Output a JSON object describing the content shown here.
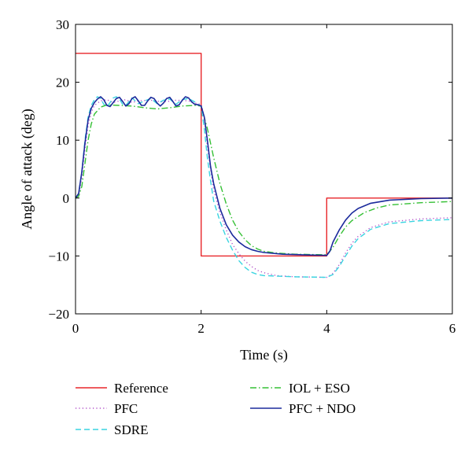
{
  "chart_data": {
    "type": "line",
    "xlabel": "Time (s)",
    "ylabel": "Angle of attack (deg)",
    "xlim": [
      0,
      6
    ],
    "ylim": [
      -20,
      30
    ],
    "xticks": [
      0,
      2,
      4,
      6
    ],
    "yticks": [
      -20,
      -10,
      0,
      10,
      20,
      30
    ],
    "xtick_labels": [
      "0",
      "2",
      "4",
      "6"
    ],
    "ytick_labels": [
      "−20",
      "−10",
      "0",
      "10",
      "20",
      "30"
    ],
    "grid": false,
    "legend_position": "below-plot",
    "series": [
      {
        "name": "Reference",
        "color": "#e8262a",
        "style": "solid",
        "points": [
          [
            0,
            25
          ],
          [
            2,
            25
          ],
          [
            2,
            -10
          ],
          [
            4,
            -10
          ],
          [
            4,
            0
          ],
          [
            6,
            0
          ]
        ]
      },
      {
        "name": "PFC",
        "color": "#b04ec8",
        "style": "dotted",
        "points": [
          [
            0,
            0
          ],
          [
            0.05,
            0.6
          ],
          [
            0.1,
            3.5
          ],
          [
            0.15,
            8.5
          ],
          [
            0.2,
            12.5
          ],
          [
            0.25,
            14.8
          ],
          [
            0.3,
            16
          ],
          [
            0.4,
            16.8
          ],
          [
            0.5,
            17
          ],
          [
            0.6,
            16.5
          ],
          [
            0.7,
            16.8
          ],
          [
            0.8,
            17
          ],
          [
            0.9,
            16.5
          ],
          [
            1.0,
            16.8
          ],
          [
            1.2,
            16.9
          ],
          [
            1.4,
            16.6
          ],
          [
            1.6,
            16.9
          ],
          [
            1.8,
            16.8
          ],
          [
            1.9,
            16.4
          ],
          [
            2.0,
            16.2
          ],
          [
            2.05,
            14
          ],
          [
            2.1,
            9
          ],
          [
            2.15,
            5
          ],
          [
            2.2,
            1.5
          ],
          [
            2.3,
            -2.5
          ],
          [
            2.4,
            -5.5
          ],
          [
            2.5,
            -8
          ],
          [
            2.6,
            -9.6
          ],
          [
            2.7,
            -10.9
          ],
          [
            2.8,
            -11.8
          ],
          [
            2.9,
            -12.5
          ],
          [
            3.0,
            -12.9
          ],
          [
            3.2,
            -13.4
          ],
          [
            3.5,
            -13.6
          ],
          [
            4.0,
            -13.7
          ],
          [
            4.1,
            -13
          ],
          [
            4.2,
            -11.5
          ],
          [
            4.3,
            -9.5
          ],
          [
            4.4,
            -7.8
          ],
          [
            4.5,
            -6.6
          ],
          [
            4.7,
            -5.1
          ],
          [
            5.0,
            -4.1
          ],
          [
            5.5,
            -3.6
          ],
          [
            6.0,
            -3.4
          ]
        ]
      },
      {
        "name": "SDRE",
        "color": "#3ad4e0",
        "style": "dashed",
        "points": [
          [
            0,
            0
          ],
          [
            0.05,
            0.8
          ],
          [
            0.1,
            4.5
          ],
          [
            0.15,
            10
          ],
          [
            0.2,
            14
          ],
          [
            0.25,
            16
          ],
          [
            0.3,
            17
          ],
          [
            0.35,
            17.5
          ],
          [
            0.4,
            17.2
          ],
          [
            0.45,
            16.2
          ],
          [
            0.5,
            15.8
          ],
          [
            0.55,
            16.5
          ],
          [
            0.6,
            17.3
          ],
          [
            0.65,
            17.5
          ],
          [
            0.7,
            17.1
          ],
          [
            0.75,
            16.2
          ],
          [
            0.8,
            16
          ],
          [
            0.9,
            17.3
          ],
          [
            1.0,
            16.3
          ],
          [
            1.1,
            16.8
          ],
          [
            1.2,
            17.2
          ],
          [
            1.3,
            16.3
          ],
          [
            1.4,
            16.9
          ],
          [
            1.5,
            17.1
          ],
          [
            1.6,
            16.2
          ],
          [
            1.7,
            17
          ],
          [
            1.8,
            17.2
          ],
          [
            1.9,
            16.6
          ],
          [
            1.95,
            16.2
          ],
          [
            2.0,
            15.8
          ],
          [
            2.05,
            12
          ],
          [
            2.1,
            7
          ],
          [
            2.15,
            3
          ],
          [
            2.2,
            -0.5
          ],
          [
            2.3,
            -4
          ],
          [
            2.4,
            -6.8
          ],
          [
            2.5,
            -9
          ],
          [
            2.6,
            -10.8
          ],
          [
            2.7,
            -12
          ],
          [
            2.8,
            -12.8
          ],
          [
            2.9,
            -13.2
          ],
          [
            3.0,
            -13.4
          ],
          [
            3.5,
            -13.6
          ],
          [
            4.0,
            -13.7
          ],
          [
            4.1,
            -13.2
          ],
          [
            4.2,
            -11.8
          ],
          [
            4.3,
            -10
          ],
          [
            4.4,
            -8.3
          ],
          [
            4.5,
            -7
          ],
          [
            4.7,
            -5.4
          ],
          [
            5.0,
            -4.4
          ],
          [
            5.5,
            -3.9
          ],
          [
            6.0,
            -3.7
          ]
        ]
      },
      {
        "name": "IOL + ESO",
        "color": "#35c035",
        "style": "dashdot",
        "points": [
          [
            0,
            0
          ],
          [
            0.05,
            0.3
          ],
          [
            0.1,
            2
          ],
          [
            0.15,
            6
          ],
          [
            0.2,
            10
          ],
          [
            0.25,
            12.8
          ],
          [
            0.3,
            14.5
          ],
          [
            0.4,
            15.7
          ],
          [
            0.5,
            16.1
          ],
          [
            0.7,
            16
          ],
          [
            0.9,
            15.9
          ],
          [
            1.1,
            15.6
          ],
          [
            1.3,
            15.4
          ],
          [
            1.5,
            15.6
          ],
          [
            1.7,
            15.9
          ],
          [
            1.9,
            16
          ],
          [
            2.0,
            15.9
          ],
          [
            2.1,
            12
          ],
          [
            2.2,
            7
          ],
          [
            2.3,
            2.5
          ],
          [
            2.4,
            -1
          ],
          [
            2.5,
            -3.8
          ],
          [
            2.6,
            -5.8
          ],
          [
            2.7,
            -7.2
          ],
          [
            2.8,
            -8.2
          ],
          [
            2.9,
            -8.8
          ],
          [
            3.0,
            -9.2
          ],
          [
            3.2,
            -9.5
          ],
          [
            3.5,
            -9.7
          ],
          [
            4.0,
            -9.8
          ],
          [
            4.1,
            -8.5
          ],
          [
            4.2,
            -6.6
          ],
          [
            4.3,
            -5
          ],
          [
            4.4,
            -3.9
          ],
          [
            4.6,
            -2.5
          ],
          [
            4.8,
            -1.7
          ],
          [
            5.0,
            -1.2
          ],
          [
            5.5,
            -0.8
          ],
          [
            6.0,
            -0.6
          ]
        ]
      },
      {
        "name": "PFC + NDO",
        "color": "#1b2a9c",
        "style": "solid",
        "points": [
          [
            0,
            0
          ],
          [
            0.05,
            0.8
          ],
          [
            0.1,
            4.5
          ],
          [
            0.15,
            9.5
          ],
          [
            0.2,
            13.5
          ],
          [
            0.25,
            15.5
          ],
          [
            0.3,
            16.5
          ],
          [
            0.35,
            17.1
          ],
          [
            0.4,
            17.5
          ],
          [
            0.45,
            17
          ],
          [
            0.5,
            16
          ],
          [
            0.55,
            15.8
          ],
          [
            0.6,
            16.5
          ],
          [
            0.65,
            17.2
          ],
          [
            0.7,
            17.4
          ],
          [
            0.75,
            16.7
          ],
          [
            0.8,
            15.9
          ],
          [
            0.85,
            16.3
          ],
          [
            0.9,
            17.2
          ],
          [
            0.95,
            17.5
          ],
          [
            1.0,
            16.8
          ],
          [
            1.05,
            16
          ],
          [
            1.1,
            16
          ],
          [
            1.15,
            16.8
          ],
          [
            1.2,
            17.4
          ],
          [
            1.25,
            17.2
          ],
          [
            1.3,
            16.4
          ],
          [
            1.35,
            15.9
          ],
          [
            1.4,
            16.4
          ],
          [
            1.45,
            17.2
          ],
          [
            1.5,
            17.4
          ],
          [
            1.55,
            16.7
          ],
          [
            1.6,
            15.9
          ],
          [
            1.65,
            16.1
          ],
          [
            1.7,
            16.9
          ],
          [
            1.75,
            17.5
          ],
          [
            1.8,
            17.3
          ],
          [
            1.85,
            16.6
          ],
          [
            1.9,
            16.2
          ],
          [
            1.95,
            16.1
          ],
          [
            2.0,
            15.9
          ],
          [
            2.05,
            14
          ],
          [
            2.1,
            10
          ],
          [
            2.15,
            5.5
          ],
          [
            2.2,
            2.5
          ],
          [
            2.3,
            -1.8
          ],
          [
            2.4,
            -4.6
          ],
          [
            2.5,
            -6.4
          ],
          [
            2.6,
            -7.6
          ],
          [
            2.7,
            -8.4
          ],
          [
            2.8,
            -8.9
          ],
          [
            2.9,
            -9.2
          ],
          [
            3.0,
            -9.4
          ],
          [
            3.3,
            -9.7
          ],
          [
            3.6,
            -9.8
          ],
          [
            4.0,
            -9.9
          ],
          [
            4.05,
            -9.2
          ],
          [
            4.1,
            -7.6
          ],
          [
            4.2,
            -5.5
          ],
          [
            4.3,
            -3.8
          ],
          [
            4.4,
            -2.6
          ],
          [
            4.5,
            -1.8
          ],
          [
            4.7,
            -0.9
          ],
          [
            5.0,
            -0.35
          ],
          [
            5.5,
            -0.1
          ],
          [
            6.0,
            0
          ]
        ]
      }
    ]
  }
}
